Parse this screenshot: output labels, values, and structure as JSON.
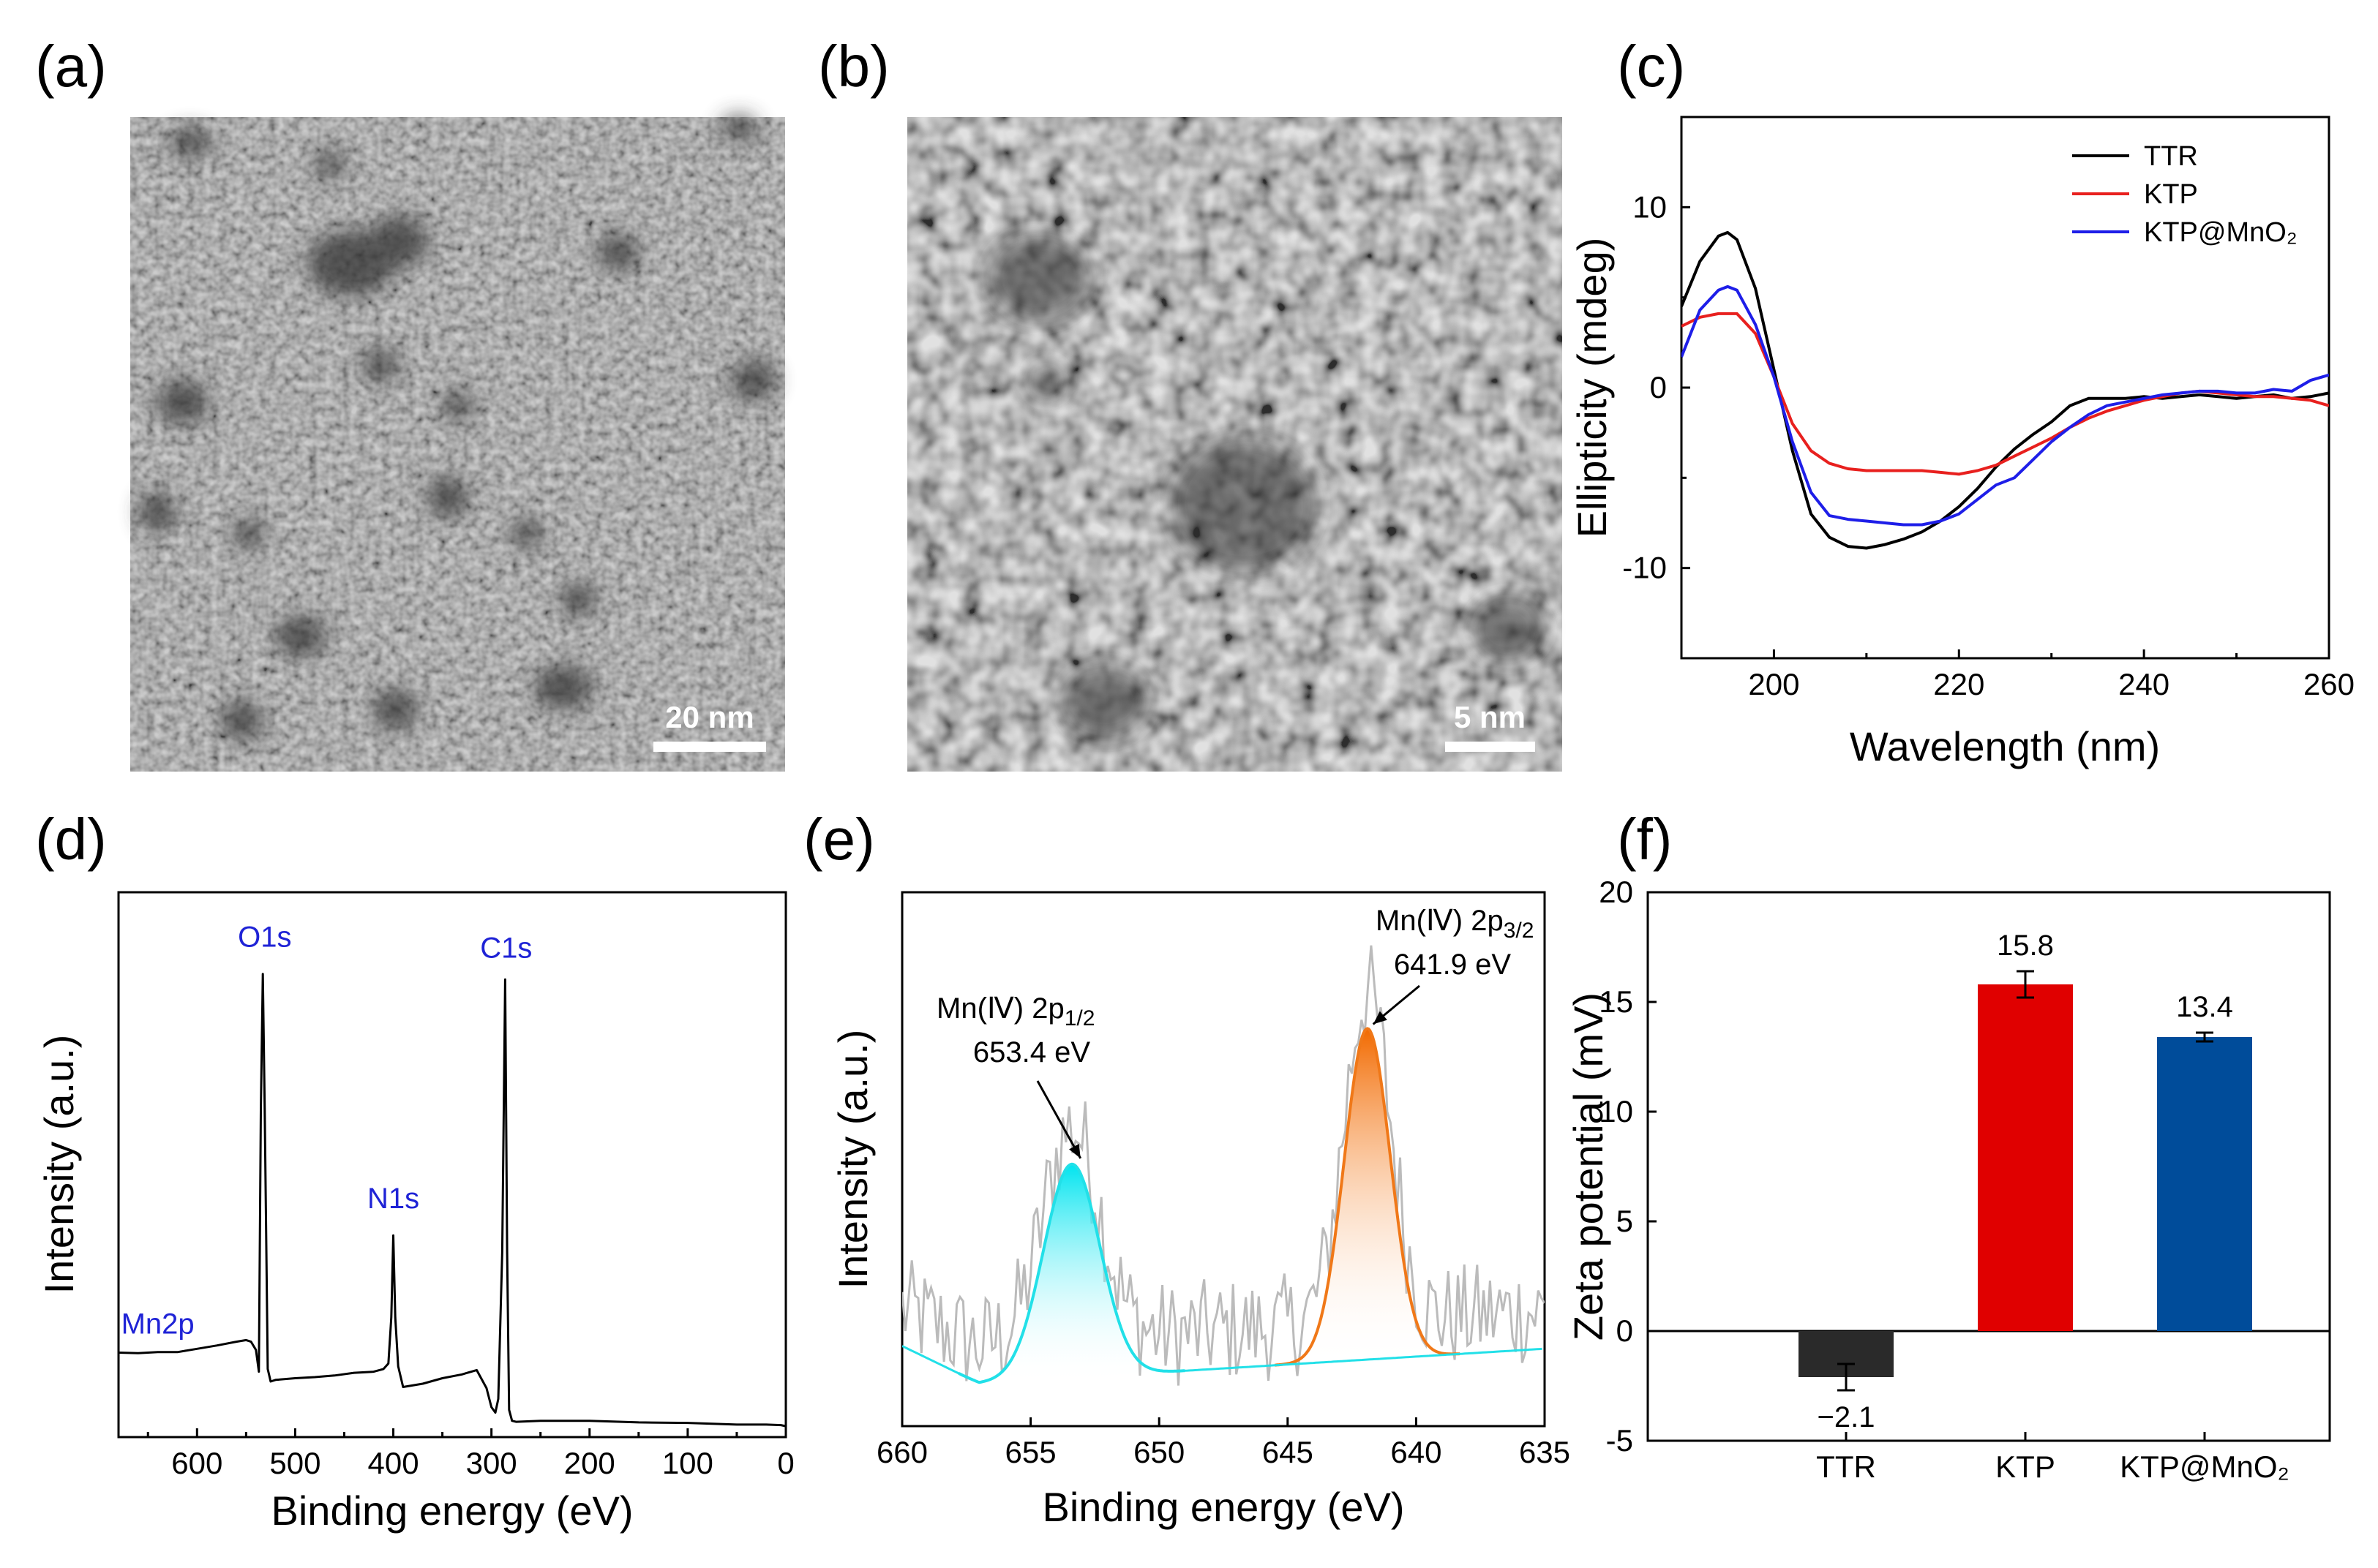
{
  "panels": {
    "a": {
      "label": "(a)",
      "scale_bar": "20 nm"
    },
    "b": {
      "label": "(b)",
      "scale_bar": "5 nm"
    },
    "c": {
      "label": "(c)"
    },
    "d": {
      "label": "(d)"
    },
    "e": {
      "label": "(e)"
    },
    "f": {
      "label": "(f)"
    }
  },
  "colors": {
    "ttr": "#000000",
    "ktp": "#e8201e",
    "ktp_mno2": "#1e1ee8",
    "peak_text": "#1f23d6",
    "fit_cyan": "#22e0e8",
    "fit_orange": "#f07818",
    "raw_gray": "#bbbbbb",
    "bar_ttr": "#2a2a2a",
    "bar_ktp": "#e00000",
    "bar_ktp_mno2": "#004c9a"
  },
  "chart_data": [
    {
      "id": "c",
      "type": "line",
      "xlabel": "Wavelength (nm)",
      "ylabel": "Ellipticity (mdeg)",
      "xlim": [
        190,
        260
      ],
      "ylim": [
        -15,
        15
      ],
      "xticks": [
        200,
        220,
        240,
        260
      ],
      "yticks": [
        -10,
        0,
        10
      ],
      "legend_position": "top-right",
      "series": [
        {
          "name": "TTR",
          "color_key": "ttr",
          "x": [
            190,
            192,
            194,
            195,
            196,
            198,
            200,
            202,
            204,
            206,
            208,
            210,
            212,
            214,
            216,
            218,
            220,
            222,
            224,
            226,
            228,
            230,
            232,
            234,
            236,
            238,
            240,
            242,
            244,
            246,
            248,
            250,
            252,
            254,
            256,
            258,
            260
          ],
          "y": [
            4.5,
            7.0,
            8.4,
            8.6,
            8.2,
            5.5,
            1.0,
            -3.5,
            -7.0,
            -8.3,
            -8.8,
            -8.9,
            -8.7,
            -8.4,
            -8.0,
            -7.4,
            -6.6,
            -5.6,
            -4.4,
            -3.4,
            -2.6,
            -1.9,
            -1.0,
            -0.6,
            -0.6,
            -0.6,
            -0.5,
            -0.6,
            -0.5,
            -0.4,
            -0.5,
            -0.6,
            -0.5,
            -0.4,
            -0.6,
            -0.5,
            -0.3
          ]
        },
        {
          "name": "KTP",
          "color_key": "ktp",
          "x": [
            190,
            192,
            194,
            196,
            198,
            200,
            202,
            204,
            206,
            208,
            210,
            212,
            214,
            216,
            218,
            220,
            222,
            224,
            226,
            228,
            230,
            232,
            234,
            236,
            238,
            240,
            242,
            244,
            246,
            248,
            250,
            252,
            254,
            256,
            258,
            260
          ],
          "y": [
            3.4,
            3.9,
            4.1,
            4.1,
            3.0,
            0.6,
            -2.0,
            -3.5,
            -4.2,
            -4.5,
            -4.6,
            -4.6,
            -4.6,
            -4.6,
            -4.7,
            -4.8,
            -4.6,
            -4.3,
            -3.8,
            -3.3,
            -2.8,
            -2.2,
            -1.7,
            -1.3,
            -1.0,
            -0.7,
            -0.5,
            -0.3,
            -0.2,
            -0.3,
            -0.4,
            -0.5,
            -0.5,
            -0.6,
            -0.7,
            -1.0
          ]
        },
        {
          "name": "KTP@MnO₂",
          "color_key": "ktp_mno2",
          "x": [
            190,
            192,
            194,
            195,
            196,
            198,
            200,
            202,
            204,
            206,
            208,
            210,
            212,
            214,
            216,
            218,
            220,
            222,
            224,
            226,
            228,
            230,
            232,
            234,
            236,
            238,
            240,
            242,
            244,
            246,
            248,
            250,
            252,
            254,
            256,
            258,
            260
          ],
          "y": [
            1.7,
            4.3,
            5.4,
            5.6,
            5.4,
            3.5,
            0.6,
            -3.0,
            -5.8,
            -7.1,
            -7.3,
            -7.4,
            -7.5,
            -7.6,
            -7.6,
            -7.4,
            -7.0,
            -6.2,
            -5.4,
            -5.0,
            -4.0,
            -3.0,
            -2.2,
            -1.5,
            -1.0,
            -0.8,
            -0.6,
            -0.4,
            -0.3,
            -0.2,
            -0.2,
            -0.3,
            -0.3,
            -0.1,
            -0.2,
            0.4,
            0.7
          ]
        }
      ]
    },
    {
      "id": "d",
      "type": "line",
      "xlabel": "Binding energy (eV)",
      "ylabel": "Intensity (a.u.)",
      "xlim": [
        680,
        0
      ],
      "ylim": [
        0,
        100
      ],
      "xticks": [
        600,
        500,
        400,
        300,
        200,
        100,
        0
      ],
      "series": [
        {
          "name": "",
          "color_key": "ttr",
          "x": [
            680,
            660,
            640,
            620,
            600,
            580,
            560,
            550,
            545,
            540,
            537,
            535,
            533,
            531,
            528,
            525,
            520,
            500,
            480,
            460,
            440,
            420,
            410,
            405,
            402,
            400,
            398,
            395,
            390,
            370,
            350,
            330,
            315,
            305,
            300,
            296,
            293,
            289,
            286,
            284,
            282,
            279,
            275,
            250,
            200,
            150,
            100,
            50,
            20,
            5,
            0
          ],
          "y": [
            15.5,
            15.4,
            15.6,
            15.6,
            16.2,
            16.8,
            17.5,
            17.8,
            17.5,
            16.0,
            12.0,
            60.0,
            85.0,
            60.0,
            12.5,
            10.2,
            10.5,
            10.8,
            11.0,
            11.3,
            11.8,
            12.0,
            12.5,
            13.5,
            22.0,
            37.0,
            22.0,
            13.0,
            9.2,
            9.8,
            10.8,
            11.5,
            12.3,
            9.0,
            5.5,
            4.5,
            7.0,
            34.0,
            84.0,
            34.0,
            5.0,
            3.0,
            2.8,
            3.0,
            3.0,
            2.7,
            2.6,
            2.3,
            2.3,
            2.2,
            2.0
          ]
        }
      ],
      "annotations": [
        {
          "text": "Mn2p",
          "x": 640,
          "y": 19
        },
        {
          "text": "O1s",
          "x": 531,
          "y": 90
        },
        {
          "text": "N1s",
          "x": 400,
          "y": 42
        },
        {
          "text": "C1s",
          "x": 285,
          "y": 88
        }
      ]
    },
    {
      "id": "e",
      "type": "line",
      "xlabel": "Binding energy (eV)",
      "ylabel": "Intensity (a.u.)",
      "xlim": [
        660,
        635
      ],
      "ylim": [
        0,
        100
      ],
      "xticks": [
        660,
        655,
        650,
        645,
        640,
        635
      ],
      "peaks": [
        {
          "label": "Mn(Ⅳ) 2p",
          "sub": "1/2",
          "energy": "653.4 eV",
          "center": 653.4,
          "sigma": 1.1,
          "height": 40,
          "color_key": "fit_cyan"
        },
        {
          "label": "Mn(Ⅳ) 2p",
          "sub": "3/2",
          "energy": "641.9 eV",
          "center": 641.9,
          "sigma": 0.9,
          "height": 62,
          "color_key": "fit_orange"
        }
      ],
      "background": {
        "x": [
          660,
          657,
          635
        ],
        "y": [
          15.0,
          8.0,
          14.5
        ]
      }
    },
    {
      "id": "f",
      "type": "bar",
      "xlabel": "",
      "ylabel": "Zeta potential (mV)",
      "ylim": [
        -5,
        20
      ],
      "yticks": [
        -5,
        0,
        5,
        10,
        15,
        20
      ],
      "categories": [
        "TTR",
        "KTP",
        "KTP@MnO₂"
      ],
      "values": [
        -2.1,
        15.8,
        13.4
      ],
      "errors": [
        0.6,
        0.6,
        0.2
      ],
      "value_labels": [
        "−2.1",
        "15.8",
        "13.4"
      ]
    }
  ]
}
